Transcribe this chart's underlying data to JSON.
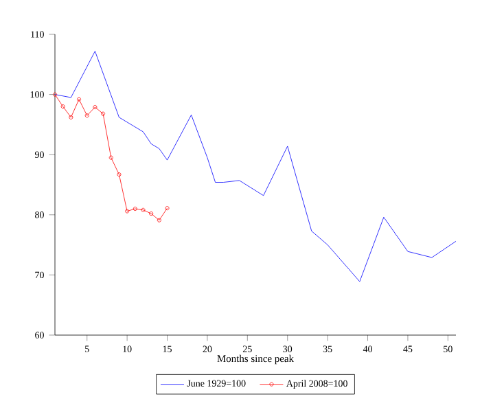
{
  "chart_data": {
    "type": "line",
    "xlabel": "Months since peak",
    "xlim": [
      1,
      51
    ],
    "xticks": [
      5,
      10,
      15,
      20,
      25,
      30,
      35,
      40,
      45,
      50
    ],
    "ylim": [
      60,
      110
    ],
    "yticks": [
      60,
      70,
      80,
      90,
      100,
      110
    ],
    "grid": false,
    "legend": "bottom",
    "series": [
      {
        "name": "June 1929=100",
        "color": "#0000ff",
        "marker": "none",
        "x": [
          1,
          3,
          6,
          9,
          12,
          13,
          14,
          15,
          18,
          20,
          21,
          22,
          24,
          27,
          30,
          33,
          35,
          39,
          42,
          45,
          48,
          51
        ],
        "values": [
          100,
          99.5,
          107.2,
          96.2,
          93.8,
          91.8,
          91,
          89.1,
          96.6,
          89.5,
          85.4,
          85.4,
          85.7,
          83.2,
          91.4,
          77.3,
          75,
          68.9,
          79.6,
          73.9,
          72.9,
          75.6
        ]
      },
      {
        "name": "April 2008=100",
        "color": "#ff0000",
        "marker": "circle",
        "x": [
          1,
          2,
          3,
          4,
          5,
          6,
          7,
          8,
          9,
          10,
          11,
          12,
          13,
          14,
          15
        ],
        "values": [
          100,
          98,
          96.2,
          99.2,
          96.5,
          97.9,
          96.8,
          89.5,
          86.7,
          80.6,
          81,
          80.8,
          80.2,
          79.1,
          81.1
        ]
      }
    ]
  }
}
